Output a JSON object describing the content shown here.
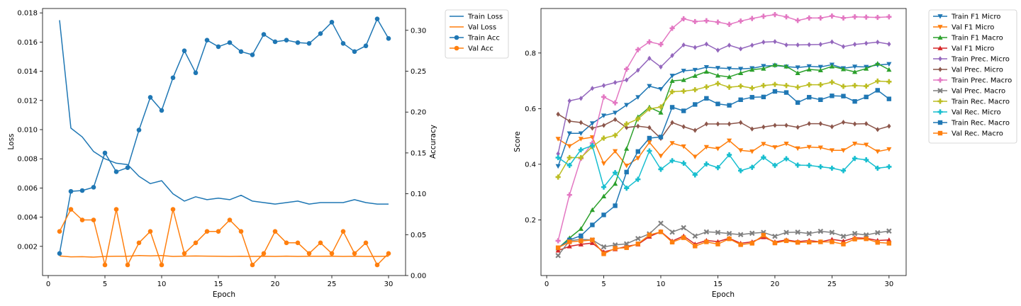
{
  "colors": {
    "blue": "#1f77b4",
    "orange": "#ff7f0e",
    "green": "#2ca02c",
    "red": "#d62728",
    "purple": "#9467bd",
    "brown": "#8c564b",
    "pink": "#e377c2",
    "gray": "#7f7f7f",
    "olive": "#bcbd22",
    "cyan": "#17becf"
  },
  "chart_data": [
    {
      "type": "line",
      "xlabel": "Epoch",
      "ylabel": "Loss",
      "y2label": "Accuracy",
      "xlim": [
        -0.5,
        31.5
      ],
      "ylim": [
        0.0,
        0.0183
      ],
      "y2lim": [
        0.0,
        0.3267
      ],
      "xticks": [
        0,
        5,
        10,
        15,
        20,
        25,
        30
      ],
      "yticks": [
        0.002,
        0.004,
        0.006,
        0.008,
        0.01,
        0.012,
        0.014,
        0.016,
        0.018
      ],
      "ytick_labels": [
        "0.002",
        "0.004",
        "0.006",
        "0.008",
        "0.010",
        "0.012",
        "0.014",
        "0.016",
        "0.018"
      ],
      "y2ticks": [
        0.0,
        0.05,
        0.1,
        0.15,
        0.2,
        0.25,
        0.3
      ],
      "y2tick_labels": [
        "0.00",
        "0.05",
        "0.10",
        "0.15",
        "0.20",
        "0.25",
        "0.30"
      ],
      "grid": false,
      "legend_position": "outside-right",
      "x": [
        1,
        2,
        3,
        4,
        5,
        6,
        7,
        8,
        9,
        10,
        11,
        12,
        13,
        14,
        15,
        16,
        17,
        18,
        19,
        20,
        21,
        22,
        23,
        24,
        25,
        26,
        27,
        28,
        29,
        30
      ],
      "series": [
        {
          "name": "Train Loss",
          "axis": "left",
          "color": "blue",
          "marker": "none",
          "values": [
            0.0175,
            0.0101,
            0.0095,
            0.0085,
            0.008,
            0.0077,
            0.0076,
            0.0068,
            0.0063,
            0.0065,
            0.0056,
            0.0051,
            0.0054,
            0.0052,
            0.0053,
            0.0052,
            0.0055,
            0.0051,
            0.005,
            0.0049,
            0.005,
            0.0051,
            0.0049,
            0.005,
            0.005,
            0.005,
            0.0052,
            0.005,
            0.0049,
            0.0049
          ]
        },
        {
          "name": "Val Loss",
          "axis": "left",
          "color": "orange",
          "marker": "none",
          "values": [
            0.00134,
            0.00128,
            0.00129,
            0.00126,
            0.00131,
            0.00132,
            0.00132,
            0.00137,
            0.00135,
            0.00137,
            0.00131,
            0.00133,
            0.00134,
            0.00133,
            0.00132,
            0.00131,
            0.00132,
            0.00131,
            0.00132,
            0.00131,
            0.00133,
            0.00131,
            0.00132,
            0.00132,
            0.00133,
            0.00131,
            0.00132,
            0.00131,
            0.00131,
            0.00132
          ]
        },
        {
          "name": "Train Acc",
          "axis": "right",
          "color": "blue",
          "marker": "circle",
          "values": [
            0.027,
            0.103,
            0.104,
            0.108,
            0.15,
            0.127,
            0.132,
            0.178,
            0.218,
            0.202,
            0.242,
            0.275,
            0.248,
            0.288,
            0.28,
            0.285,
            0.274,
            0.27,
            0.295,
            0.286,
            0.288,
            0.285,
            0.284,
            0.296,
            0.31,
            0.284,
            0.274,
            0.281,
            0.314,
            0.29
          ]
        },
        {
          "name": "Val Acc",
          "axis": "right",
          "color": "orange",
          "marker": "circle",
          "values": [
            0.054,
            0.081,
            0.068,
            0.068,
            0.013,
            0.081,
            0.013,
            0.04,
            0.054,
            0.013,
            0.081,
            0.027,
            0.04,
            0.054,
            0.054,
            0.068,
            0.054,
            0.013,
            0.027,
            0.054,
            0.04,
            0.04,
            0.027,
            0.04,
            0.027,
            0.054,
            0.027,
            0.04,
            0.013,
            0.027
          ]
        }
      ]
    },
    {
      "type": "line",
      "xlabel": "Epoch",
      "ylabel": "Score",
      "xlim": [
        -0.5,
        31.5
      ],
      "ylim": [
        0.0,
        0.96
      ],
      "xticks": [
        0,
        5,
        10,
        15,
        20,
        25,
        30
      ],
      "yticks": [
        0.2,
        0.4,
        0.6,
        0.8
      ],
      "ytick_labels": [
        "0.2",
        "0.4",
        "0.6",
        "0.8"
      ],
      "grid": false,
      "legend_position": "outside-right",
      "x": [
        1,
        2,
        3,
        4,
        5,
        6,
        7,
        8,
        9,
        10,
        11,
        12,
        13,
        14,
        15,
        16,
        17,
        18,
        19,
        20,
        21,
        22,
        23,
        24,
        25,
        26,
        27,
        28,
        29,
        30
      ],
      "series": [
        {
          "name": "Train F1 Micro",
          "color": "blue",
          "marker": "triangle-down",
          "values": [
            0.393,
            0.511,
            0.511,
            0.547,
            0.575,
            0.585,
            0.613,
            0.641,
            0.681,
            0.67,
            0.718,
            0.736,
            0.739,
            0.749,
            0.746,
            0.744,
            0.743,
            0.745,
            0.753,
            0.755,
            0.751,
            0.748,
            0.752,
            0.75,
            0.758,
            0.745,
            0.751,
            0.75,
            0.757,
            0.76
          ]
        },
        {
          "name": "Val F1 Micro",
          "color": "orange",
          "marker": "triangle-down",
          "values": [
            0.491,
            0.465,
            0.491,
            0.497,
            0.403,
            0.447,
            0.395,
            0.422,
            0.479,
            0.43,
            0.476,
            0.464,
            0.427,
            0.462,
            0.456,
            0.485,
            0.45,
            0.446,
            0.473,
            0.461,
            0.474,
            0.457,
            0.462,
            0.46,
            0.45,
            0.45,
            0.474,
            0.47,
            0.446,
            0.454
          ]
        },
        {
          "name": "Train F1 Macro",
          "color": "green",
          "marker": "triangle-up",
          "values": [
            0.098,
            0.135,
            0.168,
            0.236,
            0.285,
            0.33,
            0.456,
            0.57,
            0.605,
            0.586,
            0.7,
            0.703,
            0.718,
            0.733,
            0.719,
            0.714,
            0.728,
            0.74,
            0.744,
            0.757,
            0.752,
            0.728,
            0.741,
            0.738,
            0.752,
            0.742,
            0.732,
            0.744,
            0.762,
            0.74
          ]
        },
        {
          "name": "Val F1 Micro",
          "color": "red",
          "marker": "triangle-up",
          "values": [
            0.09,
            0.105,
            0.112,
            0.117,
            0.085,
            0.095,
            0.105,
            0.112,
            0.14,
            0.158,
            0.124,
            0.142,
            0.113,
            0.126,
            0.122,
            0.134,
            0.116,
            0.121,
            0.138,
            0.121,
            0.128,
            0.122,
            0.126,
            0.121,
            0.13,
            0.124,
            0.136,
            0.134,
            0.126,
            0.128
          ]
        },
        {
          "name": "Train Prec. Micro",
          "color": "purple",
          "marker": "diamond",
          "values": [
            0.438,
            0.628,
            0.637,
            0.673,
            0.683,
            0.694,
            0.703,
            0.738,
            0.781,
            0.75,
            0.791,
            0.829,
            0.82,
            0.832,
            0.81,
            0.828,
            0.815,
            0.828,
            0.839,
            0.841,
            0.829,
            0.829,
            0.83,
            0.831,
            0.84,
            0.823,
            0.831,
            0.835,
            0.839,
            0.832
          ]
        },
        {
          "name": "Val Prec. Micro",
          "color": "brown",
          "marker": "diamond",
          "values": [
            0.58,
            0.555,
            0.55,
            0.53,
            0.54,
            0.561,
            0.532,
            0.537,
            0.532,
            0.493,
            0.55,
            0.535,
            0.522,
            0.545,
            0.545,
            0.545,
            0.55,
            0.527,
            0.534,
            0.54,
            0.54,
            0.533,
            0.546,
            0.546,
            0.535,
            0.551,
            0.545,
            0.546,
            0.525,
            0.537
          ]
        },
        {
          "name": "Train Prec. Macro",
          "color": "pink",
          "marker": "plus",
          "values": [
            0.125,
            0.29,
            0.421,
            0.476,
            0.642,
            0.621,
            0.742,
            0.812,
            0.84,
            0.831,
            0.889,
            0.923,
            0.913,
            0.916,
            0.911,
            0.903,
            0.915,
            0.924,
            0.932,
            0.938,
            0.93,
            0.917,
            0.926,
            0.926,
            0.933,
            0.926,
            0.93,
            0.929,
            0.928,
            0.93
          ]
        },
        {
          "name": "Val Prec. Macro",
          "color": "gray",
          "marker": "x",
          "values": [
            0.072,
            0.125,
            0.13,
            0.128,
            0.103,
            0.11,
            0.114,
            0.133,
            0.15,
            0.188,
            0.156,
            0.172,
            0.142,
            0.157,
            0.155,
            0.151,
            0.147,
            0.152,
            0.155,
            0.141,
            0.155,
            0.156,
            0.151,
            0.159,
            0.155,
            0.141,
            0.151,
            0.146,
            0.154,
            0.16
          ]
        },
        {
          "name": "Train Rec. Macro",
          "color": "olive",
          "marker": "plus",
          "values": [
            0.354,
            0.424,
            0.424,
            0.463,
            0.494,
            0.504,
            0.545,
            0.563,
            0.599,
            0.606,
            0.661,
            0.663,
            0.668,
            0.678,
            0.69,
            0.677,
            0.681,
            0.674,
            0.683,
            0.687,
            0.683,
            0.677,
            0.686,
            0.686,
            0.695,
            0.68,
            0.683,
            0.681,
            0.699,
            0.697
          ]
        },
        {
          "name": "Val Rec. Micro",
          "color": "cyan",
          "marker": "plus",
          "values": [
            0.424,
            0.396,
            0.452,
            0.467,
            0.318,
            0.37,
            0.314,
            0.346,
            0.448,
            0.382,
            0.413,
            0.404,
            0.362,
            0.401,
            0.388,
            0.434,
            0.377,
            0.389,
            0.425,
            0.396,
            0.42,
            0.397,
            0.396,
            0.391,
            0.386,
            0.377,
            0.421,
            0.416,
            0.386,
            0.391
          ]
        },
        {
          "name": "Train Rec. Macro",
          "color": "blue",
          "marker": "square",
          "values": [
            0.1,
            0.128,
            0.143,
            0.182,
            0.218,
            0.251,
            0.372,
            0.446,
            0.494,
            0.498,
            0.605,
            0.592,
            0.615,
            0.637,
            0.617,
            0.612,
            0.632,
            0.641,
            0.642,
            0.662,
            0.658,
            0.622,
            0.641,
            0.632,
            0.646,
            0.645,
            0.626,
            0.642,
            0.666,
            0.635
          ]
        },
        {
          "name": "Val Rec. Macro",
          "color": "orange",
          "marker": "square",
          "values": [
            0.1,
            0.121,
            0.124,
            0.128,
            0.078,
            0.098,
            0.1,
            0.114,
            0.146,
            0.157,
            0.12,
            0.136,
            0.106,
            0.121,
            0.113,
            0.132,
            0.111,
            0.116,
            0.145,
            0.117,
            0.125,
            0.119,
            0.12,
            0.121,
            0.121,
            0.113,
            0.131,
            0.132,
            0.119,
            0.116
          ]
        }
      ]
    }
  ]
}
